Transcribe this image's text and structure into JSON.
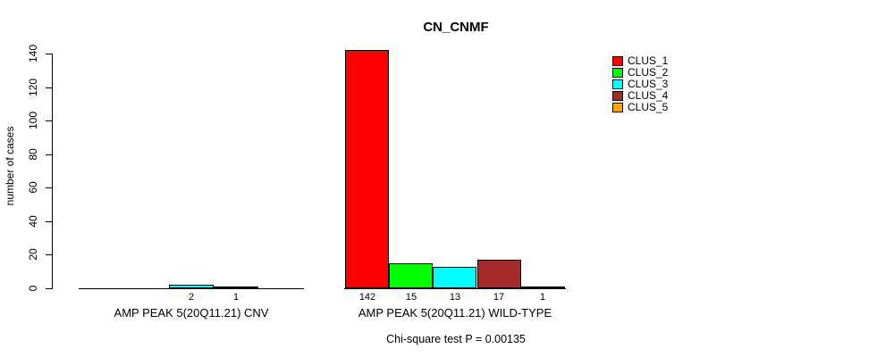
{
  "chart_data": {
    "type": "bar",
    "title": "CN_CNMF",
    "ylabel": "number of cases",
    "ylim": [
      0,
      140
    ],
    "yticks": [
      0,
      20,
      40,
      60,
      80,
      100,
      120,
      140
    ],
    "grid": false,
    "legend_position": "right",
    "clusters": [
      "CLUS_1",
      "CLUS_2",
      "CLUS_3",
      "CLUS_4",
      "CLUS_5"
    ],
    "cluster_colors": [
      "#ff0000",
      "#00ff00",
      "#00ffff",
      "#a52a2a",
      "#ffa500"
    ],
    "categories": [
      "AMP PEAK 5(20Q11.21) CNV",
      "AMP PEAK 5(20Q11.21) WILD-TYPE"
    ],
    "series": [
      {
        "name": "CLUS_1",
        "values": [
          0,
          142
        ]
      },
      {
        "name": "CLUS_2",
        "values": [
          0,
          15
        ]
      },
      {
        "name": "CLUS_3",
        "values": [
          2,
          13
        ]
      },
      {
        "name": "CLUS_4",
        "values": [
          1,
          17
        ]
      },
      {
        "name": "CLUS_5",
        "values": [
          0,
          1
        ]
      }
    ],
    "groups": [
      {
        "label": "AMP PEAK 5(20Q11.21) CNV",
        "values": [
          0,
          0,
          2,
          1,
          0
        ]
      },
      {
        "label": "AMP PEAK 5(20Q11.21) WILD-TYPE",
        "values": [
          142,
          15,
          13,
          17,
          1
        ]
      }
    ],
    "bar_labels_shown_when": "value > 0",
    "note": "Chi-square test P = 0.00135"
  }
}
